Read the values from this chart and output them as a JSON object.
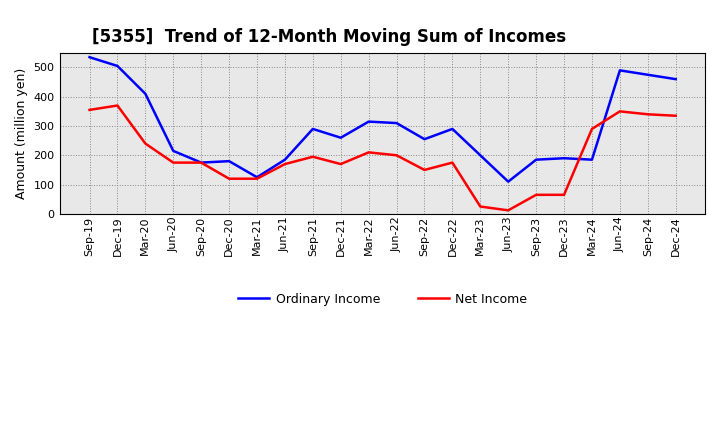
{
  "title": "[5355]  Trend of 12-Month Moving Sum of Incomes",
  "ylabel": "Amount (million yen)",
  "x_labels": [
    "Sep-19",
    "Dec-19",
    "Mar-20",
    "Jun-20",
    "Sep-20",
    "Dec-20",
    "Mar-21",
    "Jun-21",
    "Sep-21",
    "Dec-21",
    "Mar-22",
    "Jun-22",
    "Sep-22",
    "Dec-22",
    "Mar-23",
    "Jun-23",
    "Sep-23",
    "Dec-23",
    "Mar-24",
    "Jun-24",
    "Sep-24",
    "Dec-24"
  ],
  "ordinary_income": [
    535,
    505,
    410,
    215,
    175,
    180,
    125,
    185,
    290,
    260,
    315,
    310,
    255,
    290,
    200,
    110,
    185,
    190,
    185,
    490,
    475,
    460
  ],
  "net_income": [
    355,
    370,
    240,
    175,
    175,
    120,
    120,
    170,
    195,
    170,
    210,
    200,
    150,
    175,
    25,
    12,
    65,
    65,
    290,
    350,
    340,
    335
  ],
  "ordinary_color": "#0000ff",
  "net_color": "#ff0000",
  "line_width": 1.8,
  "ylim": [
    0,
    550
  ],
  "yticks": [
    0,
    100,
    200,
    300,
    400,
    500
  ],
  "grid_color": "#888888",
  "bg_color": "#ffffff",
  "plot_bg_color": "#e8e8e8",
  "legend_ordinary": "Ordinary Income",
  "legend_net": "Net Income",
  "title_fontsize": 12,
  "tick_fontsize": 8,
  "label_fontsize": 9
}
